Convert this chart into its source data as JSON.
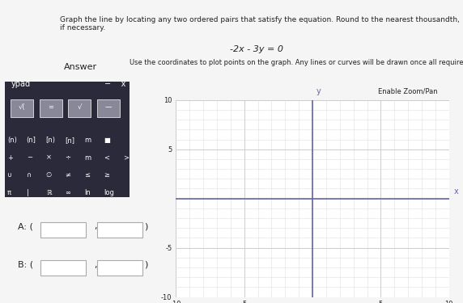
{
  "title": "Graph the line by locating any two ordered pairs that satisfy the equation. Round to the nearest thousandth, if necessary.",
  "equation": "-2x - 3y = 0",
  "answer_label": "Answer",
  "instruction": "Use the coordinates to plot points on the graph. Any lines or curves will be drawn once all required points are plotted.",
  "enable_zoom_pan": "Enable Zoom/Pan",
  "point_a_label": "A: (",
  "point_b_label": "B: (",
  "xlim": [
    -10,
    10
  ],
  "ylim": [
    -10,
    10
  ],
  "xticks": [
    -10,
    -5,
    0,
    5,
    10
  ],
  "yticks": [
    -10,
    -5,
    0,
    5,
    10
  ],
  "grid_color": "#cccccc",
  "axis_color": "#6666aa",
  "bg_color": "#f5f5f5",
  "panel_bg": "#e8e8e8",
  "keypad_bg": "#2a2a3a",
  "keypad_btn_color": "#444466",
  "white": "#ffffff",
  "text_color": "#222222",
  "light_gray": "#dddddd",
  "graph_bg": "#ffffff",
  "minor_grid_color": "#e0e0e0"
}
